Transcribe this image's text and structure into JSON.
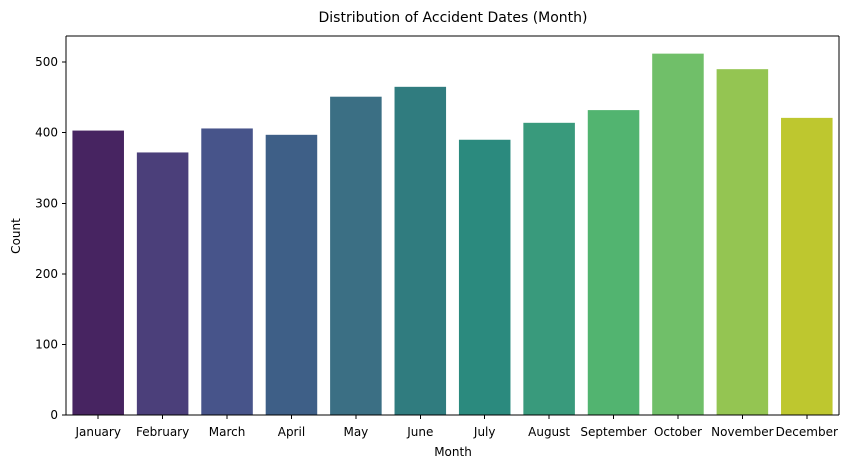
{
  "chart_data": {
    "type": "bar",
    "title": "Distribution of Accident Dates (Month)",
    "xlabel": "Month",
    "ylabel": "Count",
    "categories": [
      "January",
      "February",
      "March",
      "April",
      "May",
      "June",
      "July",
      "August",
      "September",
      "October",
      "November",
      "December"
    ],
    "values": [
      403,
      372,
      406,
      397,
      451,
      465,
      390,
      414,
      432,
      512,
      490,
      421
    ],
    "ylim": [
      0,
      537
    ],
    "yticks": [
      0,
      100,
      200,
      300,
      400,
      500
    ],
    "grid": false,
    "legend": "none",
    "colors": [
      "#472461",
      "#4b3f7a",
      "#47548a",
      "#3e5f87",
      "#3b6f84",
      "#307c7f",
      "#2b8a7e",
      "#399a7c",
      "#52b470",
      "#70bf69",
      "#94c552",
      "#bec72f"
    ]
  }
}
